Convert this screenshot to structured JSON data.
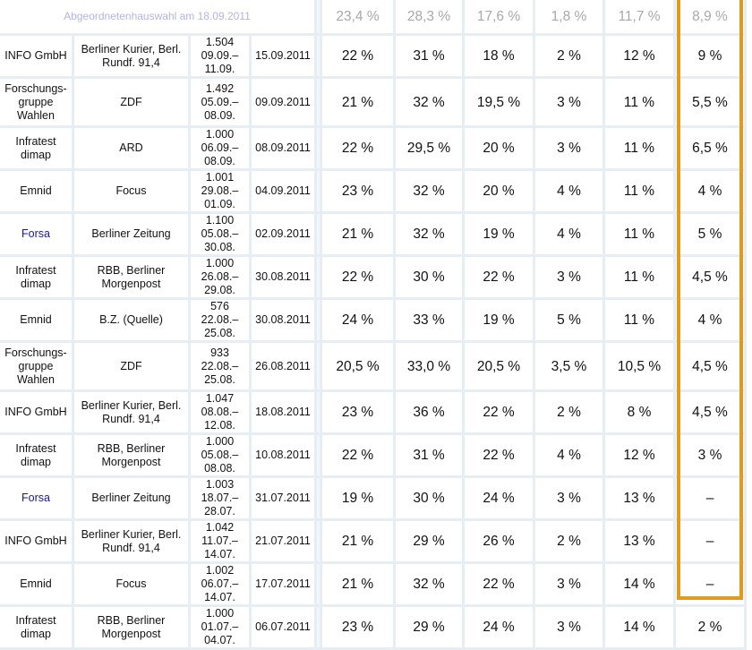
{
  "header": {
    "title": "Abgeordnetenhauswahl am 18.09.2011",
    "results": [
      "23,4 %",
      "28,3 %",
      "17,6 %",
      "1,8 %",
      "11,7 %",
      "8,9 %"
    ]
  },
  "colors": {
    "highlight": "#e09a1c",
    "grid": "#e6edf3",
    "link": "#1a1a8c"
  },
  "rows": [
    {
      "institute": "INFO GmbH",
      "link": false,
      "client": "Berliner Kurier, Berl. Rundf. 91,4",
      "sample": "1.504",
      "period": "09.09.–11.09.",
      "date": "15.09.2011",
      "values": [
        "22 %",
        "31 %",
        "18 %",
        "2 %",
        "12 %",
        "9 %"
      ]
    },
    {
      "institute": "Forschungs- gruppe Wahlen",
      "link": false,
      "client": "ZDF",
      "sample": "1.492",
      "period": "05.09.–08.09.",
      "date": "09.09.2011",
      "values": [
        "21 %",
        "32 %",
        "19,5 %",
        "3 %",
        "11 %",
        "5,5 %"
      ]
    },
    {
      "institute": "Infratest dimap",
      "link": false,
      "client": "ARD",
      "sample": "1.000",
      "period": "06.09.–08.09.",
      "date": "08.09.2011",
      "values": [
        "22 %",
        "29,5 %",
        "20 %",
        "3 %",
        "11 %",
        "6,5 %"
      ]
    },
    {
      "institute": "Emnid",
      "link": false,
      "client": "Focus",
      "sample": "1.001",
      "period": "29.08.–01.09.",
      "date": "04.09.2011",
      "values": [
        "23 %",
        "32 %",
        "20 %",
        "4 %",
        "11 %",
        "4 %"
      ]
    },
    {
      "institute": "Forsa",
      "link": true,
      "client": "Berliner Zeitung",
      "sample": "1.100",
      "period": "05.08.–30.08.",
      "date": "02.09.2011",
      "values": [
        "21 %",
        "32 %",
        "19 %",
        "4 %",
        "11 %",
        "5 %"
      ]
    },
    {
      "institute": "Infratest dimap",
      "link": false,
      "client": "RBB, Berliner Morgenpost",
      "sample": "1.000",
      "period": "26.08.–29.08.",
      "date": "30.08.2011",
      "values": [
        "22 %",
        "30 %",
        "22 %",
        "3 %",
        "11 %",
        "4,5 %"
      ]
    },
    {
      "institute": "Emnid",
      "link": false,
      "client": "B.Z. (Quelle)",
      "sample": "576",
      "period": "22.08.–25.08.",
      "date": "30.08.2011",
      "values": [
        "24 %",
        "33 %",
        "19 %",
        "5 %",
        "11 %",
        "4 %"
      ]
    },
    {
      "institute": "Forschungs- gruppe Wahlen",
      "link": false,
      "client": "ZDF",
      "sample": "933",
      "period": "22.08.–25.08.",
      "date": "26.08.2011",
      "values": [
        "20,5 %",
        "33,0 %",
        "20,5 %",
        "3,5 %",
        "10,5 %",
        "4,5 %"
      ]
    },
    {
      "institute": "INFO GmbH",
      "link": false,
      "client": "Berliner Kurier, Berl. Rundf. 91,4",
      "sample": "1.047",
      "period": "08.08.–12.08.",
      "date": "18.08.2011",
      "values": [
        "23 %",
        "36 %",
        "22 %",
        "2 %",
        "8 %",
        "4,5 %"
      ]
    },
    {
      "institute": "Infratest dimap",
      "link": false,
      "client": "RBB, Berliner Morgenpost",
      "sample": "1.000",
      "period": "05.08.–08.08.",
      "date": "10.08.2011",
      "values": [
        "22 %",
        "31 %",
        "22 %",
        "4 %",
        "12 %",
        "3 %"
      ]
    },
    {
      "institute": "Forsa",
      "link": true,
      "client": "Berliner Zeitung",
      "sample": "1.003",
      "period": "18.07.–28.07.",
      "date": "31.07.2011",
      "values": [
        "19 %",
        "30 %",
        "24 %",
        "3 %",
        "13 %",
        "–"
      ]
    },
    {
      "institute": "INFO GmbH",
      "link": false,
      "client": "Berliner Kurier, Berl. Rundf. 91,4",
      "sample": "1.042",
      "period": "11.07.–14.07.",
      "date": "21.07.2011",
      "values": [
        "21 %",
        "29 %",
        "26 %",
        "2 %",
        "13 %",
        "–"
      ]
    },
    {
      "institute": "Emnid",
      "link": false,
      "client": "Focus",
      "sample": "1.002",
      "period": "06.07.–14.07.",
      "date": "17.07.2011",
      "values": [
        "21 %",
        "32 %",
        "22 %",
        "3 %",
        "14 %",
        "–"
      ]
    },
    {
      "institute": "Infratest dimap",
      "link": false,
      "client": "RBB, Berliner Morgenpost",
      "sample": "1.000",
      "period": "01.07.–04.07.",
      "date": "06.07.2011",
      "values": [
        "23 %",
        "29 %",
        "24 %",
        "3 %",
        "14 %",
        "2 %"
      ]
    }
  ]
}
